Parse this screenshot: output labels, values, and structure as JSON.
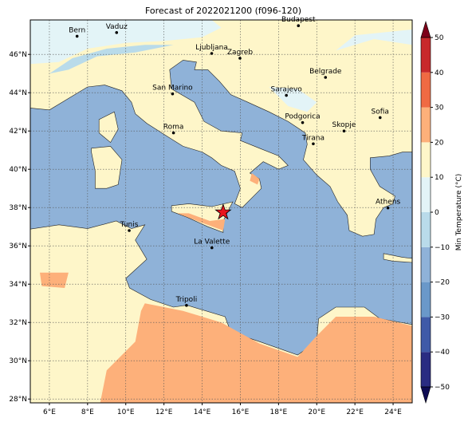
{
  "title": "Forecast of 2022021200 (f096-120)",
  "map": {
    "xlim": [
      5,
      25
    ],
    "ylim": [
      27.8,
      47.8
    ],
    "xticks": [
      {
        "value": 6,
        "label": "6°E"
      },
      {
        "value": 8,
        "label": "8°E"
      },
      {
        "value": 10,
        "label": "10°E"
      },
      {
        "value": 12,
        "label": "12°E"
      },
      {
        "value": 14,
        "label": "14°E"
      },
      {
        "value": 16,
        "label": "16°E"
      },
      {
        "value": 18,
        "label": "18°E"
      },
      {
        "value": 20,
        "label": "20°E"
      },
      {
        "value": 22,
        "label": "22°E"
      },
      {
        "value": 24,
        "label": "24°E"
      }
    ],
    "yticks": [
      {
        "value": 28,
        "label": "28°N"
      },
      {
        "value": 30,
        "label": "30°N"
      },
      {
        "value": 32,
        "label": "32°N"
      },
      {
        "value": 34,
        "label": "34°N"
      },
      {
        "value": 36,
        "label": "36°N"
      },
      {
        "value": 38,
        "label": "38°N"
      },
      {
        "value": 40,
        "label": "40°N"
      },
      {
        "value": 42,
        "label": "42°N"
      },
      {
        "value": 44,
        "label": "44°N"
      },
      {
        "value": 46,
        "label": "46°N"
      }
    ],
    "grid": true,
    "cities": [
      "Bern",
      "Vaduz",
      "Budapest",
      "Ljubljana",
      "Zagreb",
      "Belgrade",
      "San Marino",
      "Sarajevo",
      "Sofia",
      "Podgorica",
      "Skopje",
      "Roma",
      "Tirana",
      "Athens",
      "Tunis",
      "La Valette",
      "Tripoli"
    ]
  },
  "colorbar": {
    "label": "Min Temperature (°C)",
    "lim": [
      -50,
      50
    ],
    "ticks": [
      {
        "value": -50,
        "label": "−50"
      },
      {
        "value": -40,
        "label": "−40"
      },
      {
        "value": -30,
        "label": "−30"
      },
      {
        "value": -20,
        "label": "−20"
      },
      {
        "value": -10,
        "label": "−10"
      },
      0,
      10,
      20,
      30,
      40,
      50
    ],
    "colors": [
      "#2a2c82",
      "#3f5aa8",
      "#6a98c9",
      "#8fb2d8",
      "#b9dbea",
      "#e3f4f7",
      "#fef6c9",
      "#fdb07a",
      "#f06a43",
      "#c8292b"
    ],
    "extend_colors": [
      "#0f0c54",
      "#7d0019"
    ]
  }
}
